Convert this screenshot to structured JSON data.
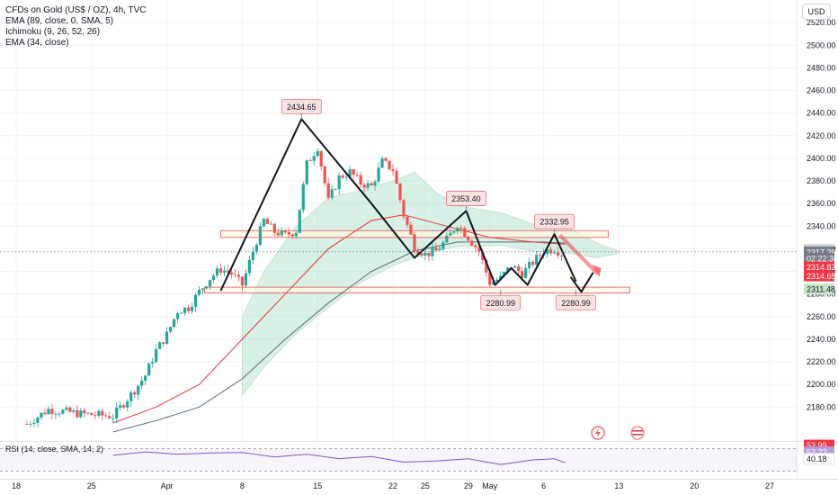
{
  "header": {
    "symbol": "CFDs on Gold (US$ / OZ), 4h, TVC",
    "studies": [
      "EMA (89, close, 0, SMA, 5)",
      "Ichimoku (9, 26, 52, 26)",
      "EMA (34, close)"
    ],
    "currency": "USD",
    "rsi_label": "RSI (14, close, SMA, 14, 2)"
  },
  "colors": {
    "up": "#26a69a",
    "down": "#ef5350",
    "pattern": "#131722",
    "zone_stroke": "#e57373",
    "zone_fill": "#fff8e1",
    "ema_red": "#e53935",
    "ema_gray": "#5d6d7e",
    "cloud": "#8fd5b5",
    "rsi_line": "#7e57c2",
    "forecast": "#ef5350"
  },
  "chart_data": {
    "type": "candlestick",
    "title": "CFDs on Gold (US$ / OZ), 4h, TVC",
    "ylim": [
      2160,
      2530
    ],
    "y_ticks": [
      2180,
      2200,
      2220,
      2240,
      2260,
      2280,
      2300,
      2320,
      2340,
      2360,
      2380,
      2400,
      2420,
      2440,
      2460,
      2480,
      2500,
      2520
    ],
    "y_tick_labels": [
      "2180.00",
      "2200.00",
      "2220.00",
      "2240.00",
      "2260.00",
      "2280.00",
      "2300.00",
      "2320.00",
      "2340.00",
      "2360.00",
      "2380.00",
      "2400.00",
      "2420.00",
      "2440.00",
      "2460.00",
      "2480.00",
      "2500.00",
      "2520.00"
    ],
    "x_ticks": [
      {
        "label": "18",
        "day": 0
      },
      {
        "label": "25",
        "day": 7
      },
      {
        "label": "Apr",
        "day": 14
      },
      {
        "label": "8",
        "day": 21
      },
      {
        "label": "15",
        "day": 28
      },
      {
        "label": "22",
        "day": 35
      },
      {
        "label": "25",
        "day": 38
      },
      {
        "label": "29",
        "day": 42
      },
      {
        "label": "May",
        "day": 44
      },
      {
        "label": "6",
        "day": 49
      },
      {
        "label": "13",
        "day": 56
      },
      {
        "label": "20",
        "day": 63
      },
      {
        "label": "27",
        "day": 70
      }
    ],
    "price_path": [
      [
        1,
        2165
      ],
      [
        3,
        2178
      ],
      [
        6,
        2174
      ],
      [
        9,
        2172
      ],
      [
        11,
        2195
      ],
      [
        12,
        2208
      ],
      [
        13,
        2230
      ],
      [
        14,
        2244
      ],
      [
        15,
        2265
      ],
      [
        16,
        2268
      ],
      [
        17,
        2282
      ],
      [
        18,
        2294
      ],
      [
        19,
        2302
      ],
      [
        20,
        2298
      ],
      [
        21,
        2288
      ],
      [
        22,
        2318
      ],
      [
        23,
        2345
      ],
      [
        24,
        2335
      ],
      [
        25,
        2332
      ],
      [
        26,
        2336
      ],
      [
        27,
        2395
      ],
      [
        28,
        2410
      ],
      [
        29,
        2362
      ],
      [
        30,
        2383
      ],
      [
        31,
        2388
      ],
      [
        32,
        2378
      ],
      [
        33,
        2375
      ],
      [
        34,
        2397
      ],
      [
        35,
        2390
      ],
      [
        36,
        2350
      ],
      [
        37,
        2322
      ],
      [
        38,
        2315
      ],
      [
        39,
        2318
      ],
      [
        40,
        2328
      ],
      [
        41,
        2342
      ],
      [
        42,
        2330
      ],
      [
        43,
        2318
      ],
      [
        44,
        2290
      ],
      [
        45,
        2294
      ],
      [
        46,
        2305
      ],
      [
        47,
        2298
      ],
      [
        48,
        2308
      ],
      [
        49,
        2318
      ],
      [
        50,
        2320
      ],
      [
        51,
        2314
      ]
    ],
    "ema_red": [
      [
        9,
        2166
      ],
      [
        13,
        2180
      ],
      [
        17,
        2200
      ],
      [
        21,
        2240
      ],
      [
        25,
        2280
      ],
      [
        29,
        2320
      ],
      [
        33,
        2345
      ],
      [
        36,
        2350
      ],
      [
        40,
        2340
      ],
      [
        44,
        2330
      ],
      [
        48,
        2326
      ],
      [
        51,
        2324
      ]
    ],
    "ema_gray": [
      [
        9,
        2158
      ],
      [
        13,
        2168
      ],
      [
        17,
        2180
      ],
      [
        21,
        2205
      ],
      [
        25,
        2240
      ],
      [
        29,
        2272
      ],
      [
        33,
        2300
      ],
      [
        37,
        2318
      ],
      [
        41,
        2326
      ],
      [
        45,
        2326
      ],
      [
        49,
        2326
      ],
      [
        51,
        2325
      ]
    ],
    "cloud_top": [
      [
        21,
        2260
      ],
      [
        23,
        2300
      ],
      [
        26,
        2340
      ],
      [
        29,
        2365
      ],
      [
        32,
        2372
      ],
      [
        35,
        2380
      ],
      [
        37,
        2388
      ],
      [
        39,
        2370
      ],
      [
        41,
        2358
      ],
      [
        43,
        2355
      ],
      [
        45,
        2352
      ],
      [
        48,
        2342
      ],
      [
        51,
        2340
      ],
      [
        54,
        2325
      ],
      [
        56,
        2318
      ]
    ],
    "cloud_bottom": [
      [
        21,
        2190
      ],
      [
        23,
        2215
      ],
      [
        26,
        2245
      ],
      [
        29,
        2268
      ],
      [
        32,
        2290
      ],
      [
        35,
        2305
      ],
      [
        37,
        2312
      ],
      [
        39,
        2318
      ],
      [
        41,
        2322
      ],
      [
        43,
        2322
      ],
      [
        45,
        2323
      ],
      [
        48,
        2318
      ],
      [
        51,
        2316
      ],
      [
        54,
        2312
      ],
      [
        56,
        2316
      ]
    ],
    "pattern_line": [
      [
        19,
        2283
      ],
      [
        26.5,
        2434.65
      ],
      [
        33,
        2360
      ],
      [
        37,
        2312
      ],
      [
        41.8,
        2353.4
      ],
      [
        44.5,
        2288
      ],
      [
        46,
        2303
      ],
      [
        47.5,
        2288
      ],
      [
        50,
        2332.95
      ],
      [
        52,
        2291
      ]
    ],
    "pattern_labels": [
      {
        "text": "2434.65",
        "day": 26.5,
        "price": 2434.65,
        "pos": "above"
      },
      {
        "text": "2353.40",
        "day": 41.8,
        "price": 2353.4,
        "pos": "above"
      },
      {
        "text": "2332.95",
        "day": 50,
        "price": 2332.95,
        "pos": "above"
      },
      {
        "text": "2280.99",
        "day": 45,
        "price": 2283.5,
        "pos": "below"
      },
      {
        "text": "2280.99",
        "day": 52,
        "price": 2283.5,
        "pos": "below"
      }
    ],
    "zones": [
      {
        "from": 2336,
        "to": 2330,
        "d0": 19,
        "d1": 55
      },
      {
        "from": 2286,
        "to": 2281,
        "d0": 17.5,
        "d1": 57
      }
    ],
    "forecast_arrow": [
      [
        50.5,
        2332
      ],
      [
        54,
        2298
      ]
    ],
    "small_arrow": [
      [
        51.5,
        2295
      ],
      [
        52.5,
        2282
      ],
      [
        53.6,
        2299
      ]
    ],
    "price_markers": [
      {
        "text": "2319.34",
        "price": 2319.34,
        "bg": "#d1d4dc",
        "fg": "#131722"
      },
      {
        "text": "2317.29",
        "price": 2317.29,
        "bg": "#787b86",
        "fg": "#ffffff"
      },
      {
        "text": "02:22:36",
        "price": 2311.6,
        "bg": "#787b86",
        "fg": "#ffffff"
      },
      {
        "text": "2314.82",
        "price": 2304,
        "bg": "#f23645",
        "fg": "#ffffff"
      },
      {
        "text": "2314.65",
        "price": 2296,
        "bg": "#f23645",
        "fg": "#ffffff"
      },
      {
        "text": "2311.48",
        "price": 2284.5,
        "bg": "#c8e6c9",
        "fg": "#131722"
      }
    ],
    "rsi": {
      "label": "RSI (14, close, SMA, 14, 2)",
      "values": [
        [
          9,
          58
        ],
        [
          12,
          64
        ],
        [
          15,
          60
        ],
        [
          18,
          62
        ],
        [
          21,
          63
        ],
        [
          24,
          55
        ],
        [
          27,
          60
        ],
        [
          30,
          52
        ],
        [
          33,
          56
        ],
        [
          36,
          46
        ],
        [
          39,
          48
        ],
        [
          42,
          52
        ],
        [
          45,
          42
        ],
        [
          48,
          50
        ],
        [
          50,
          52
        ],
        [
          51,
          45
        ]
      ],
      "markers": [
        {
          "text": "52.99",
          "bg": "#f23645",
          "fg": "#ffffff"
        },
        {
          "text": "52.22",
          "bg": "#b39ddb",
          "fg": "#ffffff"
        },
        {
          "text": "40.18",
          "bg": "#ffffff",
          "fg": "#131722"
        }
      ]
    }
  }
}
